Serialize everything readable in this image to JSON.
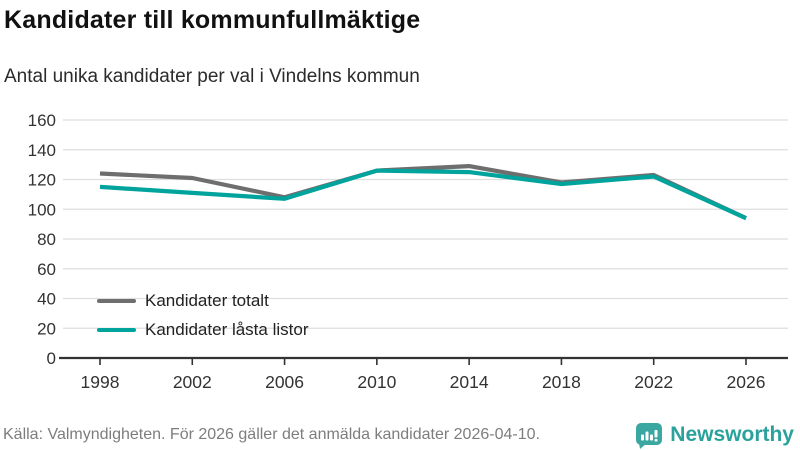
{
  "header": {
    "title": "Kandidater till kommunfullmäktige",
    "subtitle": "Antal unika kandidater per val i Vindelns kommun"
  },
  "chart_data": {
    "type": "line",
    "categories": [
      "1998",
      "2002",
      "2006",
      "2010",
      "2014",
      "2018",
      "2022",
      "2026"
    ],
    "series": [
      {
        "name": "Kandidater totalt",
        "color": "#6e6e6e",
        "values": [
          124,
          121,
          108,
          126,
          129,
          118,
          123,
          94
        ]
      },
      {
        "name": "Kandidater låsta listor",
        "color": "#00a49c",
        "values": [
          115,
          111,
          107,
          126,
          125,
          117,
          122,
          94
        ]
      }
    ],
    "title": "Kandidater till kommunfullmäktige",
    "subtitle": "Antal unika kandidater per val i Vindelns kommun",
    "xlabel": "",
    "ylabel": "",
    "ylim": [
      0,
      160
    ],
    "yticks": [
      0,
      20,
      40,
      60,
      80,
      100,
      120,
      140,
      160
    ],
    "grid": true,
    "legend_position": "inside-lower-left"
  },
  "footer": {
    "source": "Källa: Valmyndigheten. För 2026 gäller det anmälda kandidater 2026-04-10.",
    "brand": "Newsworthy"
  },
  "colors": {
    "series_total": "#6e6e6e",
    "series_locked": "#00a49c",
    "gridline": "#dedede",
    "axis": "#333333",
    "tick_label": "#333333",
    "brand_teal": "#3aa7a1"
  }
}
